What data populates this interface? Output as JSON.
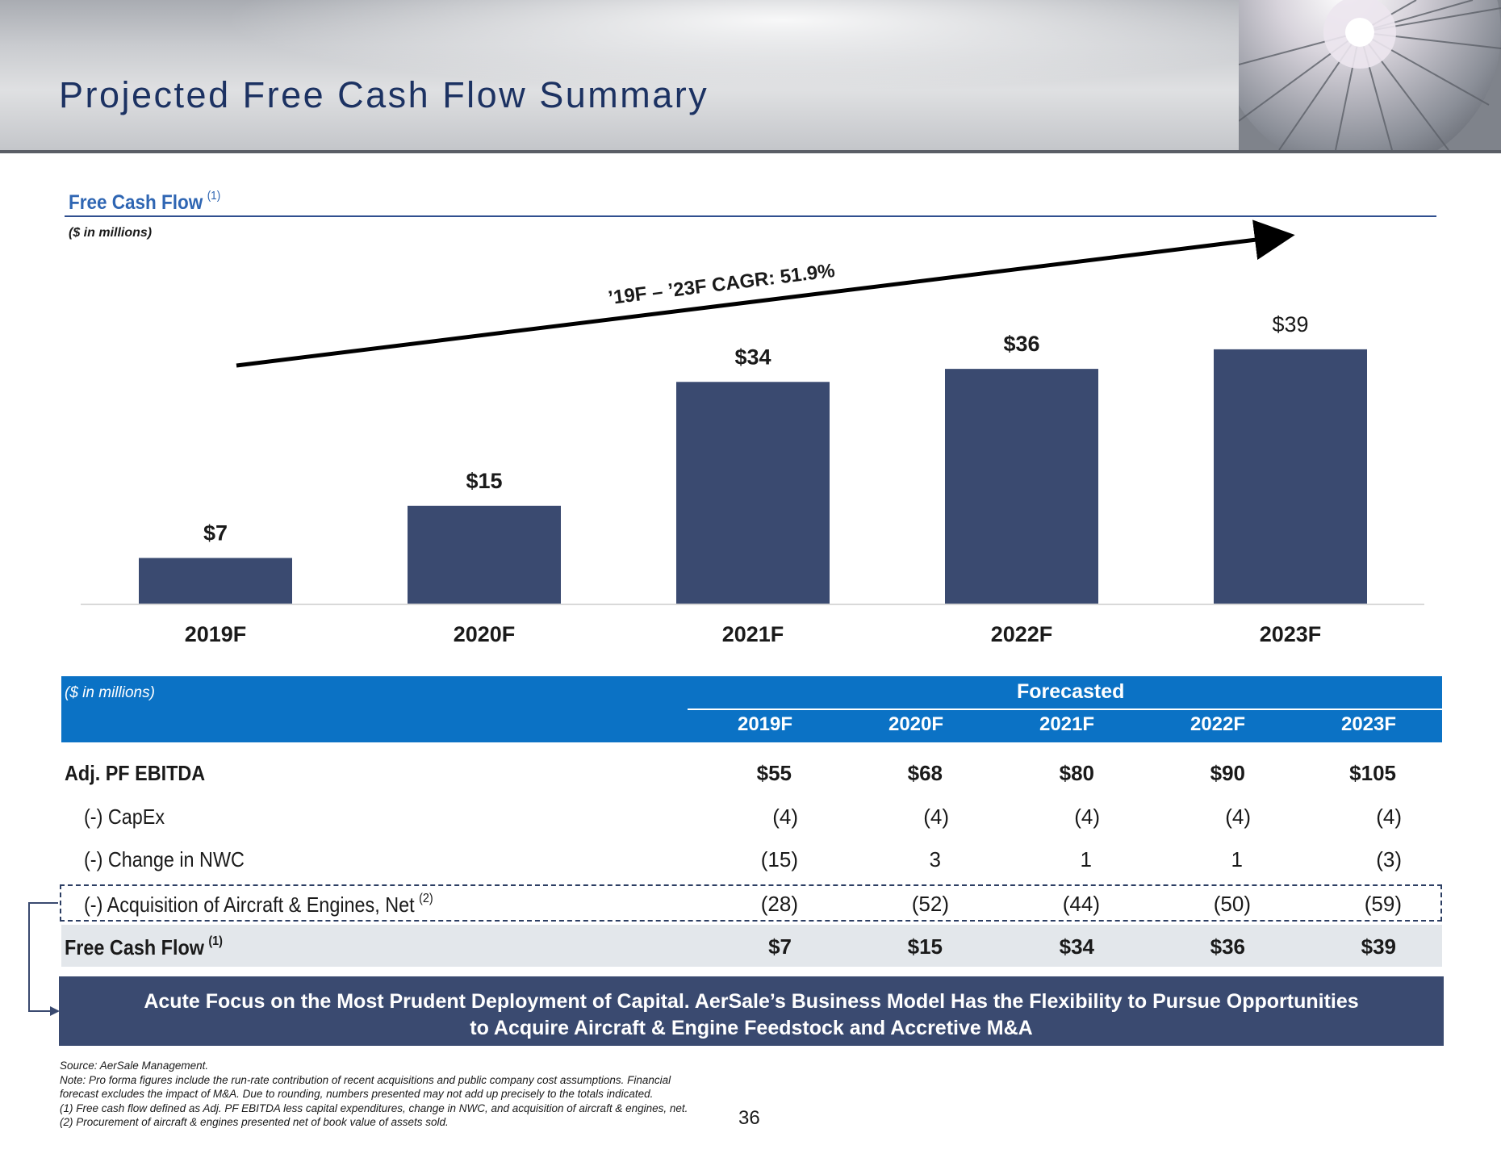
{
  "page": {
    "title": "Projected Free Cash Flow Summary",
    "page_number": "36"
  },
  "section": {
    "title": "Free Cash Flow",
    "title_note": "(1)",
    "units": "($ in millions)"
  },
  "chart_data": {
    "type": "bar",
    "categories": [
      "2019F",
      "2020F",
      "2021F",
      "2022F",
      "2023F"
    ],
    "values": [
      7,
      15,
      34,
      36,
      39
    ],
    "data_labels": [
      "$7",
      "$15",
      "$34",
      "$36",
      "$39"
    ],
    "title": "Free Cash Flow",
    "ylabel": "",
    "ylim": [
      0,
      45
    ],
    "bar_color": "#3a4a70",
    "grid": false,
    "annotation": "’19F – ’23F CAGR: 51.9%"
  },
  "table": {
    "units": "($ in millions)",
    "group_header": "Forecasted",
    "columns": [
      "2019F",
      "2020F",
      "2021F",
      "2022F",
      "2023F"
    ],
    "rows": [
      {
        "label": "Adj. PF EBITDA",
        "note": "",
        "bold": true,
        "values": [
          "$55",
          "$68",
          "$80",
          "$90",
          "$105"
        ]
      },
      {
        "label": "(-) CapEx",
        "note": "",
        "bold": false,
        "values": [
          "(4)",
          "(4)",
          "(4)",
          "(4)",
          "(4)"
        ]
      },
      {
        "label": "(-) Change in NWC",
        "note": "",
        "bold": false,
        "values": [
          "(15)",
          "3",
          "1",
          "1",
          "(3)"
        ]
      },
      {
        "label": "(-) Acquisition of Aircraft & Engines, Net",
        "note": "(2)",
        "bold": false,
        "values": [
          "(28)",
          "(52)",
          "(44)",
          "(50)",
          "(59)"
        ]
      },
      {
        "label": "Free Cash Flow",
        "note": "(1)",
        "bold": true,
        "values": [
          "$7",
          "$15",
          "$34",
          "$36",
          "$39"
        ]
      }
    ],
    "header_color": "#0b72c5",
    "total_band_color": "#e3e7eb"
  },
  "banner": {
    "line1": "Acute Focus on the Most Prudent Deployment of Capital. AerSale’s Business Model Has the Flexibility to Pursue Opportunities",
    "line2": "to Acquire Aircraft & Engine Feedstock and Accretive M&A",
    "color": "#3a4a70"
  },
  "footnotes": [
    "Source: AerSale Management.",
    "Note: Pro forma figures include the run-rate contribution of recent acquisitions and public company cost assumptions. Financial",
    "forecast excludes the impact of M&A. Due to rounding, numbers presented may not add up precisely to the totals indicated.",
    "(1)  Free cash flow defined as Adj. PF EBITDA less capital expenditures, change in NWC, and acquisition of aircraft & engines, net.",
    "(2)  Procurement of aircraft & engines presented net of book value of assets sold."
  ]
}
